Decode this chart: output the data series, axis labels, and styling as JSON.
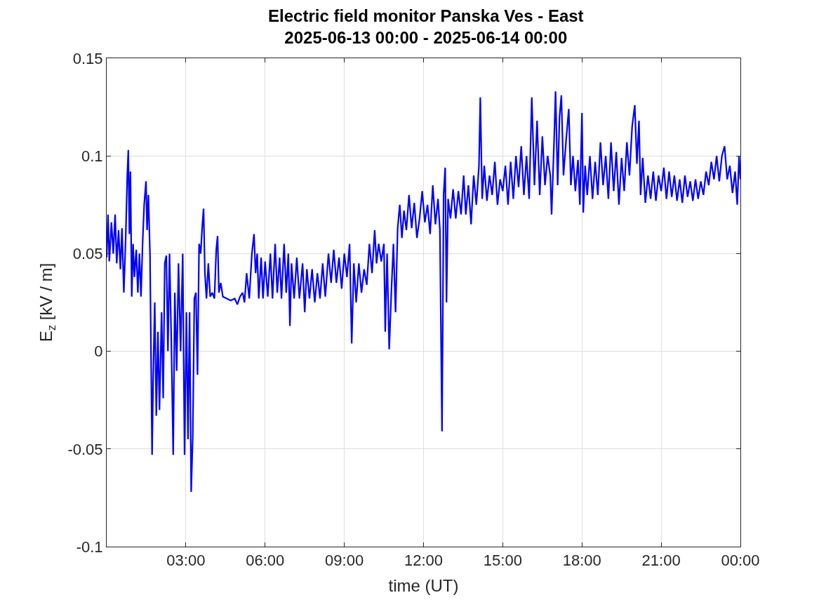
{
  "chart_data": {
    "type": "line",
    "title": "Electric field monitor Panska Ves - East\n2025-06-13 00:00 - 2025-06-14 00:00",
    "xlabel": "time (UT)",
    "ylabel": "E$_{z}$ [kV / m]",
    "xlim": [
      0,
      24
    ],
    "ylim": [
      -0.1,
      0.15
    ],
    "xticks": [
      {
        "value": 3,
        "label": "03:00"
      },
      {
        "value": 6,
        "label": "06:00"
      },
      {
        "value": 9,
        "label": "09:00"
      },
      {
        "value": 12,
        "label": "12:00"
      },
      {
        "value": 15,
        "label": "15:00"
      },
      {
        "value": 18,
        "label": "18:00"
      },
      {
        "value": 21,
        "label": "21:00"
      },
      {
        "value": 24,
        "label": "00:00"
      }
    ],
    "yticks": [
      {
        "value": -0.1,
        "label": "-0.1"
      },
      {
        "value": -0.05,
        "label": "-0.05"
      },
      {
        "value": 0,
        "label": "0"
      },
      {
        "value": 0.05,
        "label": "0.05"
      },
      {
        "value": 0.1,
        "label": "0.1"
      },
      {
        "value": 0.15,
        "label": "0.15"
      }
    ],
    "grid": true,
    "line_style": "solid",
    "marker": "none",
    "x": [
      0.0,
      0.05,
      0.1,
      0.18,
      0.25,
      0.32,
      0.38,
      0.45,
      0.52,
      0.58,
      0.65,
      0.72,
      0.78,
      0.82,
      0.86,
      0.9,
      0.95,
      1.0,
      1.05,
      1.12,
      1.18,
      1.24,
      1.3,
      1.36,
      1.42,
      1.49,
      1.53,
      1.58,
      1.64,
      1.72,
      1.76,
      1.82,
      1.88,
      1.94,
      2.0,
      2.08,
      2.14,
      2.2,
      2.26,
      2.32,
      2.38,
      2.45,
      2.52,
      2.58,
      2.65,
      2.72,
      2.8,
      2.88,
      2.95,
      3.02,
      3.08,
      3.14,
      3.2,
      3.26,
      3.32,
      3.38,
      3.44,
      3.5,
      3.56,
      3.62,
      3.67,
      3.72,
      3.78,
      3.85,
      3.92,
      4.0,
      4.08,
      4.15,
      4.2,
      4.25,
      4.32,
      4.4,
      4.55,
      4.7,
      4.85,
      4.95,
      5.05,
      5.15,
      5.22,
      5.3,
      5.4,
      5.5,
      5.58,
      5.64,
      5.7,
      5.76,
      5.85,
      5.92,
      6.0,
      6.1,
      6.2,
      6.28,
      6.38,
      6.46,
      6.55,
      6.62,
      6.72,
      6.8,
      6.88,
      6.94,
      7.0,
      7.1,
      7.2,
      7.3,
      7.42,
      7.5,
      7.58,
      7.68,
      7.78,
      7.88,
      7.98,
      8.08,
      8.18,
      8.28,
      8.4,
      8.5,
      8.6,
      8.7,
      8.8,
      8.9,
      9.0,
      9.1,
      9.2,
      9.28,
      9.36,
      9.45,
      9.55,
      9.65,
      9.75,
      9.85,
      9.95,
      10.05,
      10.15,
      10.22,
      10.3,
      10.4,
      10.5,
      10.55,
      10.62,
      10.7,
      10.78,
      10.86,
      10.94,
      11.02,
      11.1,
      11.18,
      11.26,
      11.35,
      11.45,
      11.55,
      11.65,
      11.75,
      11.85,
      11.95,
      12.05,
      12.15,
      12.25,
      12.35,
      12.45,
      12.55,
      12.62,
      12.7,
      12.76,
      12.82,
      12.87,
      12.93,
      13.02,
      13.12,
      13.22,
      13.32,
      13.42,
      13.52,
      13.6,
      13.7,
      13.8,
      13.9,
      14.0,
      14.1,
      14.15,
      14.22,
      14.3,
      14.4,
      14.5,
      14.6,
      14.7,
      14.8,
      14.9,
      15.0,
      15.1,
      15.2,
      15.3,
      15.4,
      15.5,
      15.6,
      15.7,
      15.8,
      15.9,
      16.0,
      16.1,
      16.2,
      16.3,
      16.4,
      16.5,
      16.6,
      16.7,
      16.8,
      16.85,
      16.95,
      17.0,
      17.08,
      17.15,
      17.22,
      17.3,
      17.4,
      17.5,
      17.58,
      17.66,
      17.75,
      17.85,
      17.92,
      18.0,
      18.05,
      18.12,
      18.2,
      18.3,
      18.4,
      18.5,
      18.6,
      18.7,
      18.8,
      18.9,
      19.0,
      19.1,
      19.2,
      19.3,
      19.4,
      19.5,
      19.6,
      19.7,
      19.8,
      19.9,
      20.0,
      20.08,
      20.16,
      20.22,
      20.3,
      20.4,
      20.5,
      20.6,
      20.7,
      20.8,
      20.9,
      21.0,
      21.1,
      21.2,
      21.3,
      21.4,
      21.5,
      21.6,
      21.7,
      21.8,
      21.9,
      22.0,
      22.1,
      22.2,
      22.3,
      22.4,
      22.5,
      22.6,
      22.7,
      22.8,
      22.9,
      23.0,
      23.1,
      23.2,
      23.3,
      23.4,
      23.5,
      23.6,
      23.7,
      23.8,
      23.88,
      23.95,
      24.0
    ],
    "series": [
      {
        "color": "#0000ff",
        "values": [
          0.048,
          0.07,
          0.046,
          0.066,
          0.05,
          0.07,
          0.045,
          0.062,
          0.042,
          0.063,
          0.03,
          0.058,
          0.09,
          0.103,
          0.06,
          0.092,
          0.028,
          0.055,
          0.038,
          0.052,
          0.03,
          0.05,
          0.028,
          0.055,
          0.075,
          0.087,
          0.062,
          0.08,
          0.05,
          -0.053,
          -0.015,
          0.025,
          -0.033,
          0.01,
          -0.03,
          0.02,
          -0.024,
          0.045,
          0.049,
          0.0,
          0.05,
          0.004,
          -0.053,
          0.03,
          -0.01,
          0.045,
          0.0,
          0.05,
          -0.053,
          0.02,
          -0.045,
          0.02,
          -0.072,
          -0.044,
          0.027,
          0.03,
          -0.012,
          0.055,
          0.05,
          0.064,
          0.073,
          0.04,
          0.027,
          0.045,
          0.028,
          0.03,
          0.027,
          0.052,
          0.059,
          0.03,
          0.035,
          0.028,
          0.027,
          0.026,
          0.027,
          0.024,
          0.028,
          0.03,
          0.025,
          0.04,
          0.027,
          0.05,
          0.06,
          0.04,
          0.05,
          0.027,
          0.048,
          0.027,
          0.046,
          0.028,
          0.05,
          0.027,
          0.055,
          0.03,
          0.048,
          0.027,
          0.055,
          0.03,
          0.05,
          0.013,
          0.045,
          0.027,
          0.048,
          0.027,
          0.045,
          0.02,
          0.042,
          0.027,
          0.042,
          0.025,
          0.04,
          0.027,
          0.045,
          0.028,
          0.05,
          0.035,
          0.052,
          0.035,
          0.048,
          0.032,
          0.05,
          0.038,
          0.055,
          0.004,
          0.045,
          0.025,
          0.045,
          0.03,
          0.042,
          0.034,
          0.055,
          0.04,
          0.062,
          0.045,
          0.055,
          0.046,
          0.055,
          0.01,
          0.05,
          0.001,
          0.03,
          0.055,
          0.02,
          0.063,
          0.075,
          0.058,
          0.072,
          0.062,
          0.08,
          0.063,
          0.076,
          0.058,
          0.068,
          0.082,
          0.066,
          0.075,
          0.06,
          0.085,
          0.065,
          0.078,
          0.062,
          -0.041,
          0.08,
          0.094,
          0.025,
          0.078,
          0.068,
          0.083,
          0.068,
          0.082,
          0.07,
          0.09,
          0.07,
          0.085,
          0.065,
          0.09,
          0.075,
          0.095,
          0.13,
          0.078,
          0.095,
          0.077,
          0.09,
          0.08,
          0.097,
          0.075,
          0.088,
          0.082,
          0.095,
          0.075,
          0.097,
          0.078,
          0.1,
          0.084,
          0.105,
          0.08,
          0.1,
          0.078,
          0.13,
          0.085,
          0.118,
          0.08,
          0.11,
          0.085,
          0.1,
          0.09,
          0.07,
          0.11,
          0.133,
          0.085,
          0.12,
          0.131,
          0.09,
          0.108,
          0.124,
          0.085,
          0.1,
          0.082,
          0.098,
          0.075,
          0.122,
          0.071,
          0.095,
          0.08,
          0.1,
          0.078,
          0.097,
          0.08,
          0.107,
          0.085,
          0.1,
          0.078,
          0.107,
          0.082,
          0.102,
          0.075,
          0.099,
          0.082,
          0.107,
          0.09,
          0.115,
          0.126,
          0.096,
          0.118,
          0.08,
          0.099,
          0.076,
          0.09,
          0.078,
          0.092,
          0.077,
          0.09,
          0.082,
          0.094,
          0.078,
          0.092,
          0.079,
          0.09,
          0.077,
          0.088,
          0.076,
          0.09,
          0.079,
          0.087,
          0.077,
          0.088,
          0.078,
          0.087,
          0.08,
          0.092,
          0.085,
          0.097,
          0.088,
          0.1,
          0.087,
          0.1,
          0.105,
          0.088,
          0.095,
          0.081,
          0.092,
          0.075,
          0.1,
          0.088
        ]
      }
    ]
  }
}
